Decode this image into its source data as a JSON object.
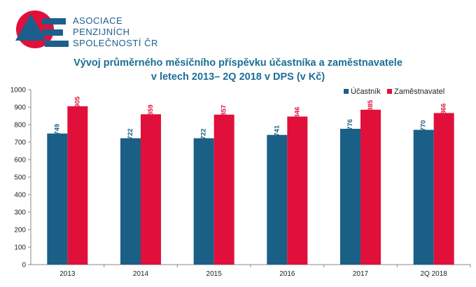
{
  "org": {
    "line1": "ASOCIACE",
    "line2": "PENZIJNÍCH",
    "line3": "SPOLEČNOSTÍ ČR"
  },
  "chart_data": {
    "type": "bar",
    "title_line1": "Vývoj průměrného měsíčního příspěvku účastníka a zaměstnavatele",
    "title_line2": "v letech 2013– 2Q 2018 v DPS (v Kč)",
    "categories": [
      "2013",
      "2014",
      "2015",
      "2016",
      "2017",
      "2Q 2018"
    ],
    "series": [
      {
        "name": "Účastník",
        "values": [
          749,
          722,
          722,
          741,
          776,
          770
        ],
        "color": "#1a5f86"
      },
      {
        "name": "Zaměstnavatel",
        "values": [
          905,
          859,
          857,
          846,
          885,
          866
        ],
        "color": "#e0103a"
      }
    ],
    "ylim": [
      0,
      1000
    ],
    "yticks": [
      0,
      100,
      200,
      300,
      400,
      500,
      600,
      700,
      800,
      900,
      1000
    ],
    "grid": false,
    "legend": "top-right"
  }
}
